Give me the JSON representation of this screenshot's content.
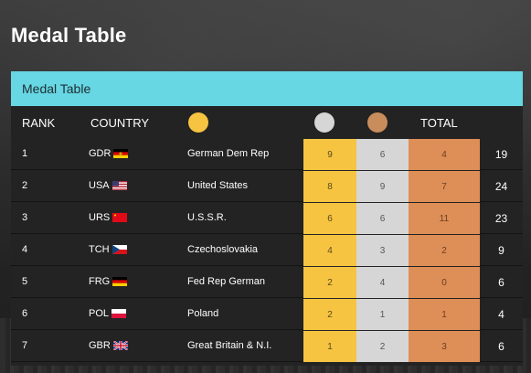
{
  "page": {
    "title": "Medal Table"
  },
  "panel": {
    "header": "Medal Table",
    "columns": {
      "rank": "RANK",
      "country": "COUNTRY",
      "total": "TOTAL"
    },
    "medal_colors": {
      "gold": "#f6c441",
      "silver": "#d6d6d6",
      "bronze": "#de8e57"
    }
  },
  "rows": [
    {
      "rank": "1",
      "code": "GDR",
      "flag": "flag-gdr",
      "name": "German Dem Rep",
      "gold": "9",
      "silver": "6",
      "bronze": "4",
      "total": "19"
    },
    {
      "rank": "2",
      "code": "USA",
      "flag": "flag-usa",
      "name": "United States",
      "gold": "8",
      "silver": "9",
      "bronze": "7",
      "total": "24"
    },
    {
      "rank": "3",
      "code": "URS",
      "flag": "flag-urs",
      "name": "U.S.S.R.",
      "gold": "6",
      "silver": "6",
      "bronze": "11",
      "total": "23"
    },
    {
      "rank": "4",
      "code": "TCH",
      "flag": "flag-tch",
      "name": "Czechoslovakia",
      "gold": "4",
      "silver": "3",
      "bronze": "2",
      "total": "9"
    },
    {
      "rank": "5",
      "code": "FRG",
      "flag": "flag-frg",
      "name": "Fed Rep German",
      "gold": "2",
      "silver": "4",
      "bronze": "0",
      "total": "6"
    },
    {
      "rank": "6",
      "code": "POL",
      "flag": "flag-pol",
      "name": "Poland",
      "gold": "2",
      "silver": "1",
      "bronze": "1",
      "total": "4"
    },
    {
      "rank": "7",
      "code": "GBR",
      "flag": "flag-gbr",
      "name": "Great Britain & N.I.",
      "gold": "1",
      "silver": "2",
      "bronze": "3",
      "total": "6"
    }
  ]
}
